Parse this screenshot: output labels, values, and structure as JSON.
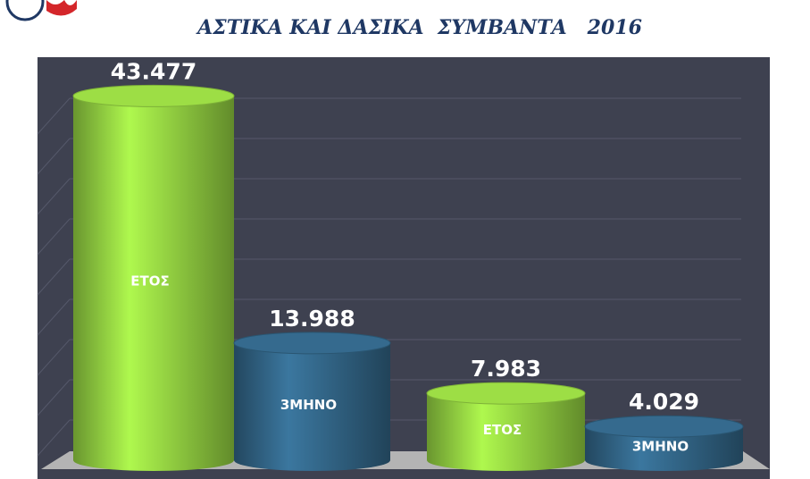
{
  "chart_data": {
    "type": "bar3d",
    "title": "ΑΣΤΙΚΑ ΚΑΙ ΔΑΣΙΚΑ  ΣΥΜΒΑΝΤΑ   2016",
    "categories": [
      "ΕΤΟΣ",
      "3ΜΗΝΟ",
      "ΕΤΟΣ",
      "3ΜΗΝΟ"
    ],
    "values": [
      43477,
      13988,
      7983,
      4029
    ],
    "value_labels": [
      "43.477",
      "13.988",
      "7.983",
      "4.029"
    ],
    "colors": [
      "#8cc63e",
      "#2f5f7f",
      "#8cc63e",
      "#2f5f7f"
    ],
    "ylim": [
      0,
      48000
    ]
  }
}
